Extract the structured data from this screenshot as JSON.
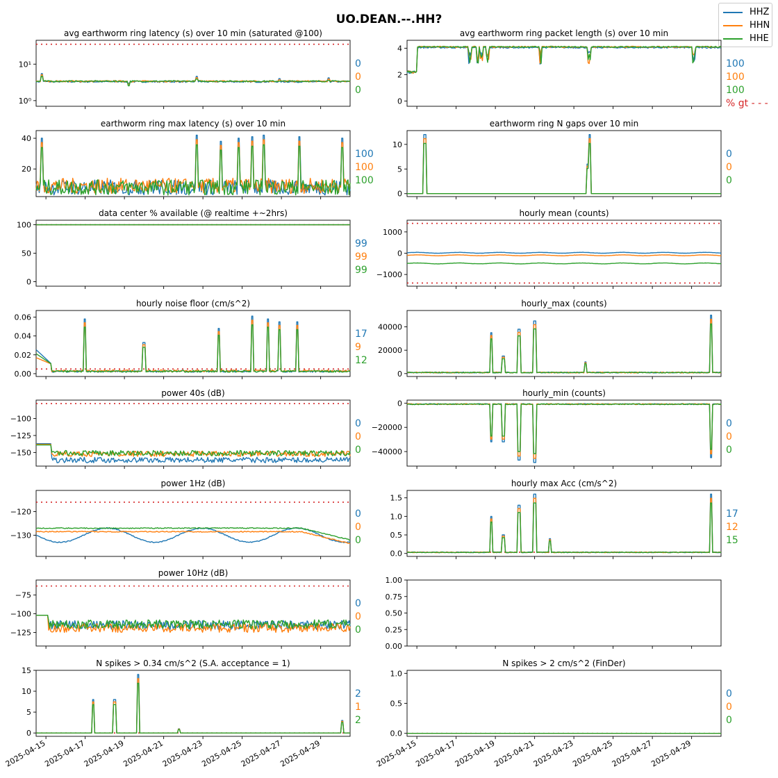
{
  "suptitle": "UO.DEAN.--.HH?",
  "colors": {
    "HHZ": "#1f77b4",
    "HHN": "#ff7f0e",
    "HHE": "#2ca02c",
    "threshold": "#d62728"
  },
  "legend": [
    {
      "name": "HHZ",
      "color": "#1f77b4"
    },
    {
      "name": "HHN",
      "color": "#ff7f0e"
    },
    {
      "name": "HHE",
      "color": "#2ca02c"
    }
  ],
  "x_tick_labels": [
    "2025-04-15",
    "2025-04-17",
    "2025-04-19",
    "2025-04-21",
    "2025-04-23",
    "2025-04-25",
    "2025-04-27",
    "2025-04-29"
  ],
  "x_range": [
    "2025-04-14T12:00",
    "2025-04-30T12:00"
  ],
  "chart_data": [
    {
      "id": "avg-latency",
      "type": "line",
      "title": "avg earthworm ring latency (s)   over 10 min (saturated @100)",
      "yscale": "log",
      "ylim": [
        0.7,
        45
      ],
      "yticks": [
        1,
        10
      ],
      "ytick_labels": [
        "10⁰",
        "10¹"
      ],
      "threshold": 35,
      "baseline": {
        "HHZ": 3.3,
        "HHN": 3.4,
        "HHE": 3.4
      },
      "stats": [
        "0",
        "0",
        "0"
      ],
      "stats_pos": "right"
    },
    {
      "id": "avg-packet",
      "type": "line",
      "title": "avg earthworm ring packet length (s)   over 10 min",
      "yscale": "linear",
      "ylim": [
        -0.4,
        4.6
      ],
      "yticks": [
        0,
        2,
        4
      ],
      "ytick_labels": [
        "0",
        "2",
        "4"
      ],
      "baseline": {
        "HHZ": 4.05,
        "HHN": 4.1,
        "HHE": 4.1
      },
      "stats": [
        "100",
        "100",
        "100"
      ],
      "stats_pos": "right",
      "footer": "% gt - - -"
    },
    {
      "id": "max-latency",
      "type": "line",
      "title": "earthworm ring max latency (s)   over 10 min",
      "yscale": "linear",
      "ylim": [
        2,
        45
      ],
      "yticks": [
        20,
        40
      ],
      "ytick_labels": [
        "20",
        "40"
      ],
      "baseline": {
        "HHZ": 8,
        "HHN": 9,
        "HHE": 8
      },
      "stats": [
        "100",
        "100",
        "100"
      ],
      "stats_pos": "right"
    },
    {
      "id": "n-gaps",
      "type": "line",
      "title": "earthworm ring N gaps   over 10 min",
      "yscale": "linear",
      "ylim": [
        -0.6,
        12.8
      ],
      "yticks": [
        0,
        5,
        10
      ],
      "ytick_labels": [
        "0",
        "5",
        "10"
      ],
      "baseline": {
        "HHZ": 0,
        "HHN": 0,
        "HHE": 0
      },
      "stats": [
        "0",
        "0",
        "0"
      ],
      "stats_pos": "right"
    },
    {
      "id": "data-available",
      "type": "line",
      "title": "data center % available (@ realtime +~2hrs)",
      "yscale": "linear",
      "ylim": [
        -8,
        108
      ],
      "yticks": [
        0,
        50,
        100
      ],
      "ytick_labels": [
        "0",
        "50",
        "100"
      ],
      "threshold": 100,
      "baseline": {
        "HHZ": 100,
        "HHN": 100,
        "HHE": 100
      },
      "stats": [
        "99",
        "99",
        "99"
      ],
      "stats_pos": "right"
    },
    {
      "id": "hourly-mean",
      "type": "line",
      "title": "hourly mean (counts)",
      "yscale": "linear",
      "ylim": [
        -1550,
        1550
      ],
      "yticks": [
        -1000,
        0,
        1000
      ],
      "ytick_labels": [
        "−1000",
        "0",
        "1000"
      ],
      "threshold": [
        1400,
        -1400
      ],
      "baseline": {
        "HHZ": 20,
        "HHN": -100,
        "HHE": -480
      },
      "stats": [],
      "stats_pos": "none"
    },
    {
      "id": "noise-floor",
      "type": "line",
      "title": "hourly noise floor (cm/s^2)",
      "yscale": "linear",
      "ylim": [
        -0.003,
        0.067
      ],
      "yticks": [
        0,
        0.02,
        0.04,
        0.06
      ],
      "ytick_labels": [
        "0.00",
        "0.02",
        "0.04",
        "0.06"
      ],
      "threshold": 0.005,
      "baseline": {
        "HHZ": 0.0025,
        "HHN": 0.003,
        "HHE": 0.0025
      },
      "stats": [
        "17",
        "9",
        "12"
      ],
      "stats_pos": "right"
    },
    {
      "id": "hourly-max",
      "type": "line",
      "title": "hourly_max (counts)",
      "yscale": "linear",
      "ylim": [
        -2500,
        54000
      ],
      "yticks": [
        0,
        20000,
        40000
      ],
      "ytick_labels": [
        "0",
        "20000",
        "40000"
      ],
      "baseline": {
        "HHZ": 900,
        "HHN": 900,
        "HHE": 900
      },
      "stats": [],
      "stats_pos": "none"
    },
    {
      "id": "power-40s",
      "type": "line",
      "title": "power 40s (dB)",
      "yscale": "linear",
      "ylim": [
        -170,
        -73
      ],
      "yticks": [
        -150,
        -125,
        -100
      ],
      "ytick_labels": [
        "−150",
        "−125",
        "−100"
      ],
      "threshold": -78,
      "baseline": {
        "HHZ": -161,
        "HHN": -152,
        "HHE": -151
      },
      "stats": [
        "0",
        "0",
        "0"
      ],
      "stats_pos": "right"
    },
    {
      "id": "hourly-min",
      "type": "line",
      "title": "hourly_min (counts)",
      "yscale": "linear",
      "ylim": [
        -52000,
        2500
      ],
      "yticks": [
        -40000,
        -20000,
        0
      ],
      "ytick_labels": [
        "−40000",
        "−20000",
        "0"
      ],
      "baseline": {
        "HHZ": -800,
        "HHN": -800,
        "HHE": -900
      },
      "stats": [
        "0",
        "0",
        "0"
      ],
      "stats_pos": "right"
    },
    {
      "id": "power-1hz",
      "type": "line",
      "title": "power 1Hz (dB)",
      "yscale": "linear",
      "ylim": [
        -139,
        -111
      ],
      "yticks": [
        -130,
        -120
      ],
      "ytick_labels": [
        "−130",
        "−120"
      ],
      "threshold": -116,
      "baseline": {
        "HHZ": -130,
        "HHN": -128.5,
        "HHE": -127
      },
      "stats": [
        "0",
        "0",
        "0"
      ],
      "stats_pos": "right"
    },
    {
      "id": "hourly-max-acc",
      "type": "line",
      "title": "hourly max Acc (cm/s^2)",
      "yscale": "linear",
      "ylim": [
        -0.08,
        1.7
      ],
      "yticks": [
        0,
        0.5,
        1,
        1.5
      ],
      "ytick_labels": [
        "0.0",
        "0.5",
        "1.0",
        "1.5"
      ],
      "threshold": 0.034,
      "baseline": {
        "HHZ": 0.03,
        "HHN": 0.03,
        "HHE": 0.03
      },
      "stats": [
        "17",
        "12",
        "15"
      ],
      "stats_pos": "right"
    },
    {
      "id": "power-10hz",
      "type": "line",
      "title": "power 10Hz (dB)",
      "yscale": "linear",
      "ylim": [
        -143,
        -55
      ],
      "yticks": [
        -125,
        -100,
        -75
      ],
      "ytick_labels": [
        "−125",
        "−100",
        "−75"
      ],
      "threshold": -63,
      "baseline": {
        "HHZ": -115,
        "HHN": -119,
        "HHE": -114
      },
      "stats": [
        "0",
        "0",
        "0"
      ],
      "stats_pos": "right"
    },
    {
      "id": "empty",
      "type": "line",
      "title": "",
      "yscale": "linear",
      "ylim": [
        0,
        1
      ],
      "yticks": [
        0,
        0.25,
        0.5,
        0.75,
        1
      ],
      "ytick_labels": [
        "0.00",
        "0.25",
        "0.50",
        "0.75",
        "1.00"
      ],
      "baseline": null,
      "stats": [],
      "stats_pos": "none",
      "empty": true
    },
    {
      "id": "spikes-034",
      "type": "line",
      "title": "N spikes > 0.34 cm/s^2 (S.A. acceptance = 1)",
      "yscale": "linear",
      "ylim": [
        -0.8,
        15
      ],
      "yticks": [
        0,
        5,
        10,
        15
      ],
      "ytick_labels": [
        "0",
        "5",
        "10",
        "15"
      ],
      "threshold": 0,
      "baseline": {
        "HHZ": 0,
        "HHN": 0,
        "HHE": 0
      },
      "stats": [
        "2",
        "1",
        "2"
      ],
      "stats_pos": "right"
    },
    {
      "id": "spikes-2",
      "type": "line",
      "title": "N spikes > 2 cm/s^2 (FinDer)",
      "yscale": "linear",
      "ylim": [
        -0.05,
        1.05
      ],
      "yticks": [
        0,
        0.5,
        1
      ],
      "ytick_labels": [
        "0.0",
        "0.5",
        "1.0"
      ],
      "threshold": 0,
      "baseline": {
        "HHZ": 0,
        "HHN": 0,
        "HHE": 0
      },
      "stats": [
        "0",
        "0",
        "0"
      ],
      "stats_pos": "right"
    }
  ]
}
